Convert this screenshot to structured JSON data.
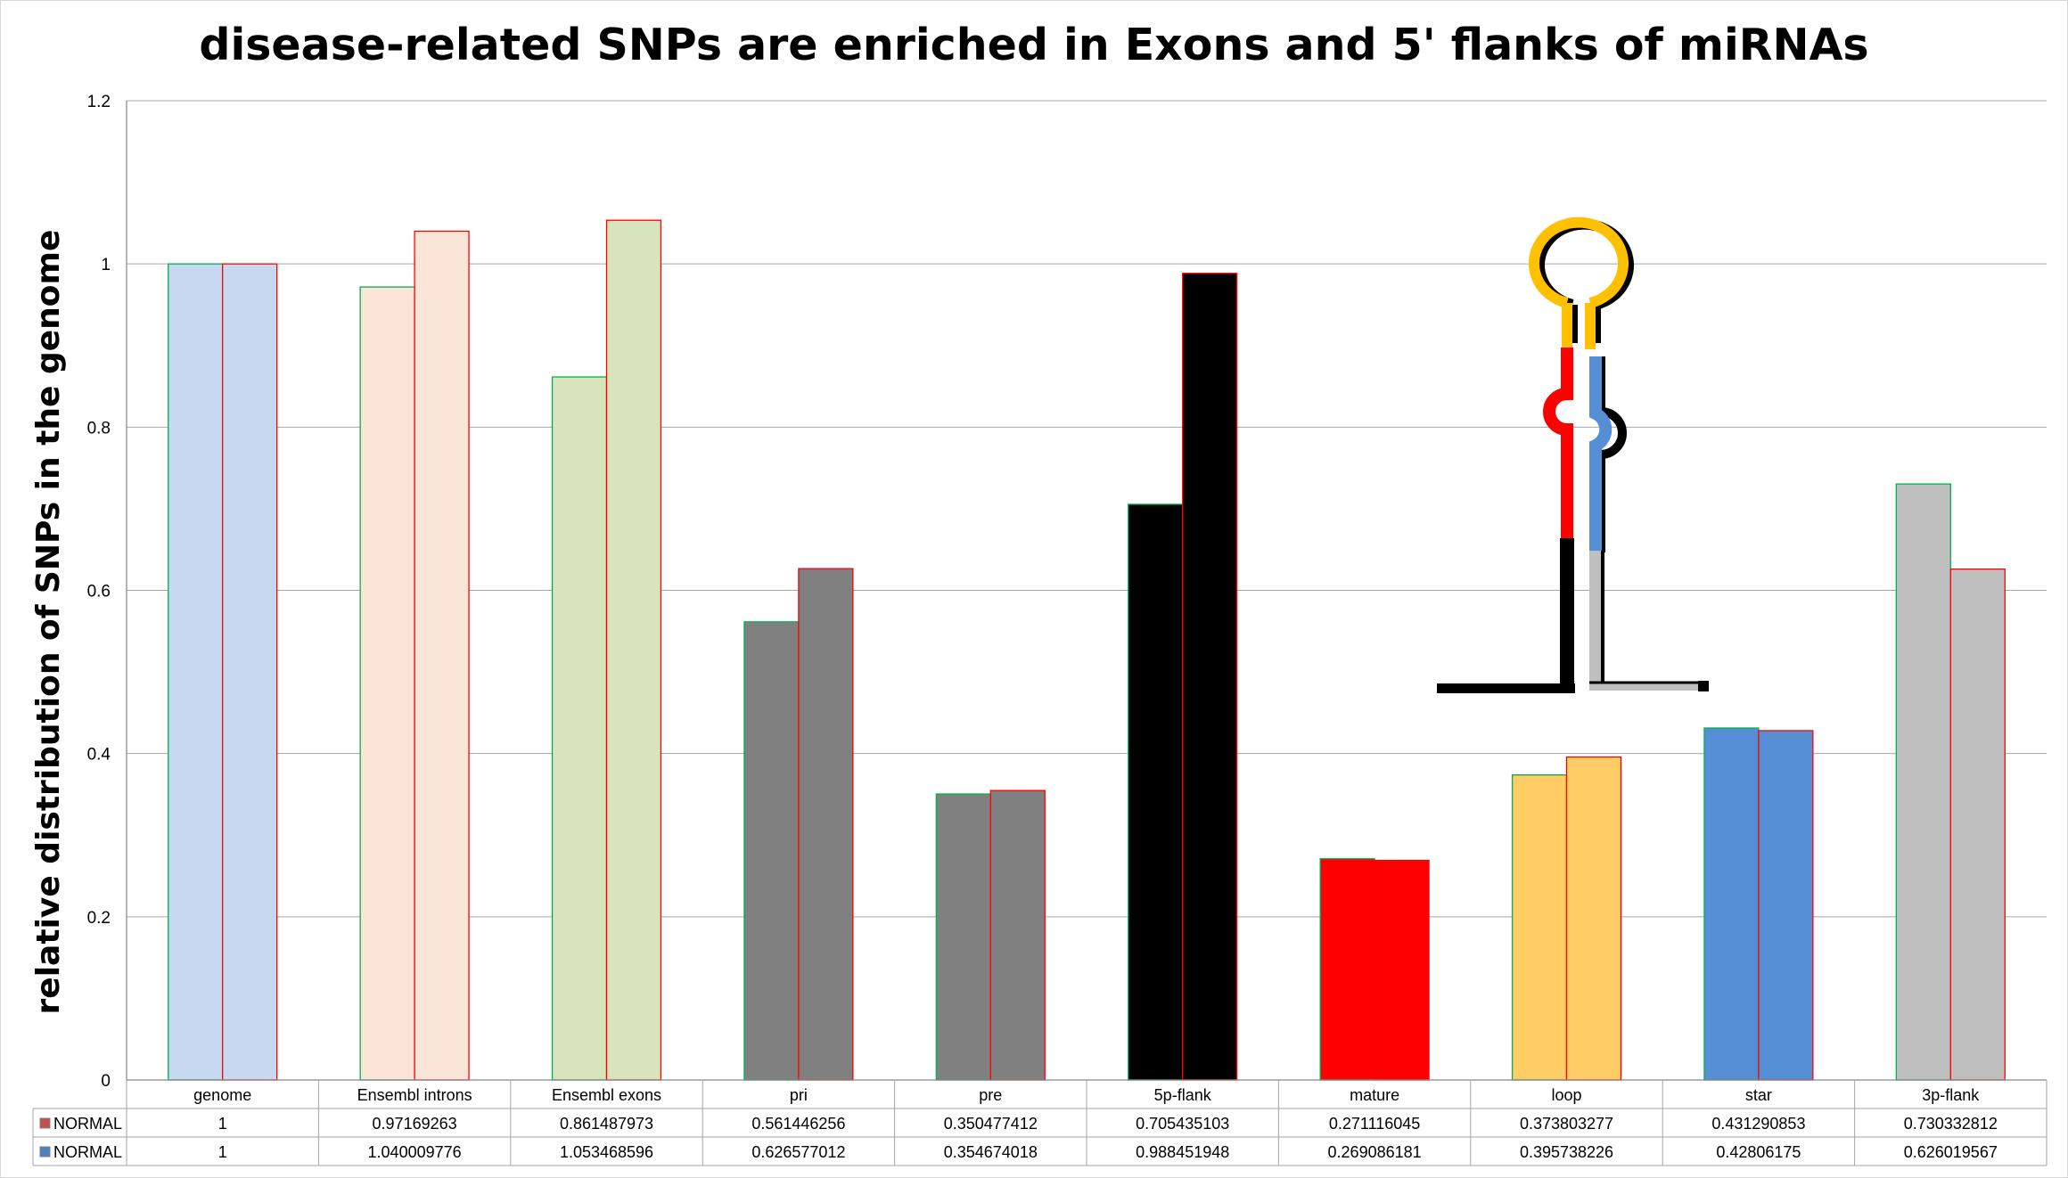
{
  "chart_data": {
    "type": "bar",
    "title": "disease-related SNPs are enriched in Exons and 5' flanks of miRNAs",
    "xlabel": "",
    "ylabel": "relative distribution of SNPs in the genome",
    "ylim": [
      0,
      1.2
    ],
    "yticks": [
      "0",
      "0.2",
      "0.4",
      "0.6",
      "0.8",
      "1",
      "1.2"
    ],
    "grid": true,
    "legend": "data table below plot",
    "categories": [
      "genome",
      "Ensembl introns",
      "Ensembl exons",
      "pri",
      "pre",
      "5p-flank",
      "mature",
      "loop",
      "star",
      "3p-flank"
    ],
    "category_colors": [
      "#c6d9f1",
      "#fbe5d6",
      "#d8e4bc",
      "#808080",
      "#808080",
      "#000000",
      "#ff0000",
      "#ffcc66",
      "#558ed5",
      "#bfbfbf"
    ],
    "series": [
      {
        "name": "NORMAL",
        "legend_key_color": "#c0504d",
        "edge_color": "#00b050",
        "values": [
          1,
          0.97169263,
          0.861487973,
          0.561446256,
          0.350477412,
          0.705435103,
          0.271116045,
          0.373803277,
          0.431290853,
          0.730332812
        ],
        "labels": [
          "1",
          "0.97169263",
          "0.861487973",
          "0.561446256",
          "0.350477412",
          "0.705435103",
          "0.271116045",
          "0.373803277",
          "0.431290853",
          "0.730332812"
        ]
      },
      {
        "name": "NORMAL",
        "legend_key_color": "#4f81bd",
        "edge_color": "#ff0000",
        "values": [
          1,
          1.040009776,
          1.053468596,
          0.626577012,
          0.354674018,
          0.988451948,
          0.269086181,
          0.395738226,
          0.42806175,
          0.626019567
        ],
        "labels": [
          "1",
          "1.040009776",
          "1.053468596",
          "0.626577012",
          "0.354674018",
          "0.988451948",
          "0.269086181",
          "0.395738226",
          "0.42806175",
          "0.626019567"
        ]
      }
    ]
  },
  "inset": {
    "name": "miRNA hairpin diagram",
    "colors": {
      "loop": "#ffc000",
      "mature": "#ff0000",
      "star": "#558ed5",
      "flank5": "#000000",
      "flank3": "#bfbfbf"
    }
  }
}
